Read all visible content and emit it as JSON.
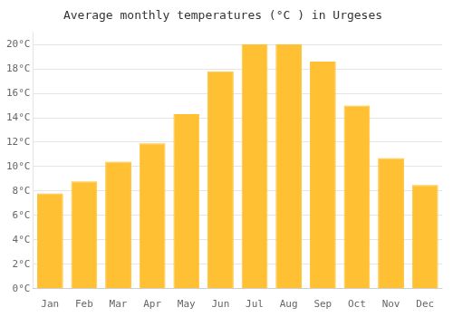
{
  "chart_data": {
    "type": "bar",
    "title": "Average monthly temperatures (°C ) in Urgeses",
    "categories": [
      "Jan",
      "Feb",
      "Mar",
      "Apr",
      "May",
      "Jun",
      "Jul",
      "Aug",
      "Sep",
      "Oct",
      "Nov",
      "Dec"
    ],
    "values": [
      7.8,
      8.8,
      10.4,
      11.9,
      14.3,
      17.8,
      20.0,
      20.0,
      18.6,
      15.0,
      10.7,
      8.5
    ],
    "color": "#FFC133",
    "ylim": [
      0,
      21
    ],
    "yticks": [
      {
        "value": 0,
        "label": "0°C"
      },
      {
        "value": 2,
        "label": "2°C"
      },
      {
        "value": 4,
        "label": "4°C"
      },
      {
        "value": 6,
        "label": "6°C"
      },
      {
        "value": 8,
        "label": "8°C"
      },
      {
        "value": 10,
        "label": "10°C"
      },
      {
        "value": 12,
        "label": "12°C"
      },
      {
        "value": 14,
        "label": "14°C"
      },
      {
        "value": 16,
        "label": "16°C"
      },
      {
        "value": 18,
        "label": "18°C"
      },
      {
        "value": 20,
        "label": "20°C"
      }
    ],
    "grid": true
  }
}
